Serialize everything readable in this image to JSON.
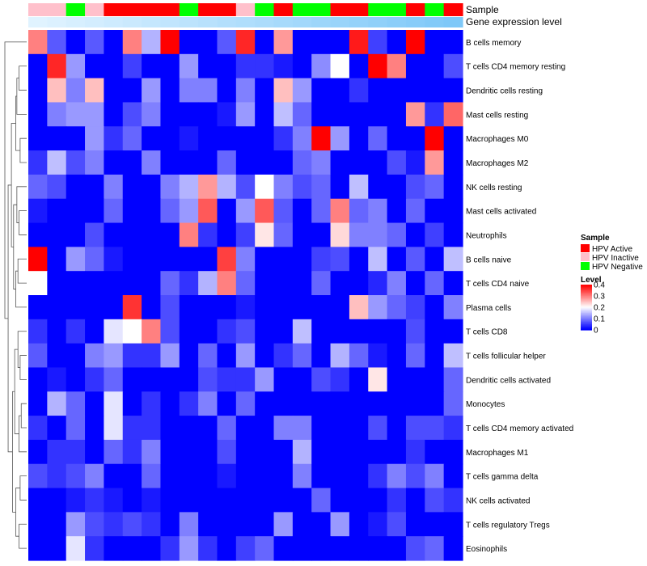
{
  "chart_data": {
    "type": "heatmap",
    "title": "",
    "annotation_tracks": [
      {
        "name": "Sample",
        "values": [
          "HPV Inactive",
          "HPV Inactive",
          "HPV Negative",
          "HPV Inactive",
          "HPV Active",
          "HPV Active",
          "HPV Active",
          "HPV Active",
          "HPV Negative",
          "HPV Active",
          "HPV Active",
          "HPV Inactive",
          "HPV Negative",
          "HPV Active",
          "HPV Negative",
          "HPV Negative",
          "HPV Active",
          "HPV Active",
          "HPV Negative",
          "HPV Negative",
          "HPV Active",
          "HPV Negative",
          "HPV Active"
        ]
      },
      {
        "name": "Gene expression level",
        "values": [
          0.02,
          0.05,
          0.08,
          0.11,
          0.14,
          0.17,
          0.2,
          0.23,
          0.26,
          0.29,
          0.32,
          0.35,
          0.38,
          0.41,
          0.44,
          0.47,
          0.5,
          0.53,
          0.56,
          0.59,
          0.62,
          0.65,
          0.68
        ]
      }
    ],
    "rows": [
      "B cells memory",
      "T cells CD4 memory resting",
      "Dendritic cells resting",
      "Mast cells resting",
      "Macrophages M0",
      "Macrophages M2",
      "NK cells resting",
      "Mast cells activated",
      "Neutrophils",
      "B cells naive",
      "T cells CD4 naive",
      "Plasma cells",
      "T cells CD8",
      "T cells follicular helper",
      "Dendritic cells activated",
      "Monocytes",
      "T cells CD4 memory activated",
      "Macrophages M1",
      "T cells gamma delta",
      "NK cells activated",
      "T cells regulatory  Tregs",
      "Eosinophils"
    ],
    "values": [
      [
        0.3,
        0.07,
        0,
        0.07,
        0,
        0.3,
        0.14,
        0.4,
        0,
        0,
        0.07,
        0.37,
        0,
        0.28,
        0,
        0,
        0,
        0.38,
        0.05,
        0,
        0.4,
        0,
        0
      ],
      [
        0,
        0.37,
        0.12,
        0,
        0,
        0.05,
        0,
        0,
        0.12,
        0,
        0,
        0.04,
        0.04,
        0.02,
        0,
        0.11,
        0.2,
        0,
        0.4,
        0.3,
        0,
        0,
        0.06
      ],
      [
        0,
        0.25,
        0.1,
        0.25,
        0,
        0,
        0.12,
        0,
        0.1,
        0.1,
        0,
        0.1,
        0,
        0.25,
        0.12,
        0,
        0,
        0.04,
        0,
        0,
        0,
        0,
        0
      ],
      [
        0,
        0.1,
        0.12,
        0.12,
        0,
        0.06,
        0.1,
        0,
        0,
        0,
        0.02,
        0.12,
        0,
        0.15,
        0.08,
        0,
        0,
        0,
        0,
        0,
        0.28,
        0.04,
        0.32
      ],
      [
        0,
        0,
        0,
        0.12,
        0.04,
        0.08,
        0,
        0,
        0.02,
        0,
        0,
        0,
        0,
        0.04,
        0.1,
        0.4,
        0.12,
        0,
        0.08,
        0,
        0,
        0.4,
        0
      ],
      [
        0.04,
        0.15,
        0.06,
        0.1,
        0,
        0,
        0.1,
        0,
        0,
        0,
        0.08,
        0,
        0,
        0,
        0.08,
        0.1,
        0,
        0,
        0,
        0.06,
        0.02,
        0.28,
        0
      ],
      [
        0.08,
        0.06,
        0,
        0,
        0.1,
        0,
        0,
        0.1,
        0.14,
        0.28,
        0.14,
        0.06,
        0.2,
        0.1,
        0.06,
        0.08,
        0,
        0.15,
        0,
        0,
        0.06,
        0.08,
        0
      ],
      [
        0.02,
        0,
        0,
        0,
        0.08,
        0,
        0,
        0.08,
        0.12,
        0.33,
        0,
        0.12,
        0.33,
        0.07,
        0,
        0.08,
        0.3,
        0.08,
        0.1,
        0,
        0.08,
        0,
        0
      ],
      [
        0,
        0,
        0,
        0.06,
        0,
        0,
        0,
        0,
        0.3,
        0.04,
        0,
        0.05,
        0.22,
        0.08,
        0,
        0,
        0.23,
        0.1,
        0.1,
        0.08,
        0,
        0.05,
        0
      ],
      [
        0.4,
        0,
        0.12,
        0.08,
        0.02,
        0,
        0,
        0,
        0,
        0,
        0.35,
        0.1,
        0,
        0,
        0,
        0.05,
        0.06,
        0,
        0.15,
        0,
        0.07,
        0,
        0.15
      ],
      [
        0.2,
        0,
        0,
        0,
        0,
        0,
        0,
        0.08,
        0.04,
        0.14,
        0.3,
        0.08,
        0,
        0,
        0,
        0.08,
        0,
        0,
        0.03,
        0.1,
        0,
        0.08,
        0
      ],
      [
        0,
        0,
        0,
        0,
        0,
        0.36,
        0,
        0.06,
        0,
        0,
        0,
        0.02,
        0,
        0,
        0,
        0,
        0,
        0.25,
        0.12,
        0.08,
        0.05,
        0,
        0.1
      ],
      [
        0.04,
        0,
        0.04,
        0,
        0.18,
        0.2,
        0.3,
        0.06,
        0,
        0,
        0.04,
        0.06,
        0,
        0,
        0.15,
        0,
        0,
        0,
        0,
        0,
        0.06,
        0,
        0
      ],
      [
        0.07,
        0,
        0,
        0.1,
        0.12,
        0.04,
        0.04,
        0.12,
        0,
        0.08,
        0,
        0.12,
        0,
        0.04,
        0.08,
        0,
        0.14,
        0.08,
        0.02,
        0,
        0.08,
        0,
        0.15
      ],
      [
        0,
        0.02,
        0,
        0.04,
        0.08,
        0,
        0,
        0,
        0,
        0.06,
        0.04,
        0.04,
        0.12,
        0,
        0,
        0.06,
        0.04,
        0,
        0.22,
        0,
        0,
        0,
        0.08
      ],
      [
        0,
        0.14,
        0.08,
        0,
        0.18,
        0,
        0.04,
        0,
        0.04,
        0.1,
        0,
        0.08,
        0,
        0,
        0,
        0,
        0,
        0,
        0,
        0,
        0,
        0,
        0.08
      ],
      [
        0.04,
        0,
        0.08,
        0,
        0.18,
        0.04,
        0.04,
        0,
        0,
        0,
        0.08,
        0,
        0,
        0.1,
        0.1,
        0,
        0,
        0,
        0.06,
        0,
        0.06,
        0.06,
        0.04
      ],
      [
        0,
        0.04,
        0.04,
        0,
        0.08,
        0.04,
        0.1,
        0,
        0,
        0,
        0.06,
        0,
        0,
        0,
        0.14,
        0,
        0,
        0,
        0,
        0,
        0.04,
        0,
        0
      ],
      [
        0.06,
        0.04,
        0.06,
        0.1,
        0,
        0,
        0.08,
        0,
        0,
        0,
        0.02,
        0,
        0,
        0,
        0.1,
        0,
        0,
        0,
        0.04,
        0.1,
        0.06,
        0.1,
        0
      ],
      [
        0,
        0,
        0.02,
        0.04,
        0.02,
        0,
        0.02,
        0,
        0,
        0,
        0,
        0,
        0,
        0,
        0,
        0.08,
        0,
        0,
        0,
        0.04,
        0,
        0.06,
        0.04
      ],
      [
        0,
        0,
        0.12,
        0.06,
        0.04,
        0.06,
        0.04,
        0,
        0.1,
        0,
        0,
        0,
        0,
        0.12,
        0,
        0,
        0.12,
        0,
        0.02,
        0.06,
        0,
        0,
        0
      ],
      [
        0,
        0,
        0.18,
        0.04,
        0,
        0,
        0,
        0.04,
        0.12,
        0.04,
        0,
        0.05,
        0.08,
        0,
        0,
        0,
        0,
        0,
        0,
        0,
        0.06,
        0.08,
        0
      ]
    ],
    "color_scale": {
      "name": "Level",
      "min": 0,
      "max": 0.4,
      "low": "#0000FF",
      "mid": "#FFFFFF",
      "high": "#FF0000",
      "mid_value": 0.2
    },
    "legend": {
      "sample_title": "Sample",
      "sample_entries": [
        {
          "label": "HPV Active",
          "color": "#FF0000"
        },
        {
          "label": "HPV Inactive",
          "color": "#FFC0CB"
        },
        {
          "label": "HPV Negative",
          "color": "#00FF00"
        }
      ],
      "level_title": "Level",
      "level_ticks": [
        "0.4",
        "0.3",
        "0.2",
        "0.1",
        "0"
      ],
      "level_tick_values": [
        0.4,
        0.3,
        0.2,
        0.1,
        0
      ]
    },
    "gene_track_colors": {
      "low": "#E0F3FF",
      "high": "#7EC8F8"
    }
  }
}
